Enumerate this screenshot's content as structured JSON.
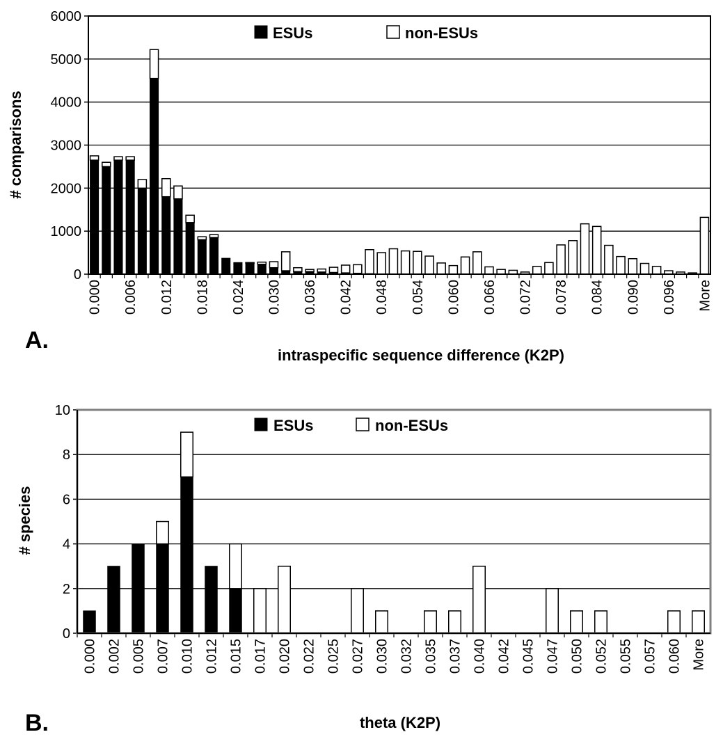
{
  "chart_data": [
    {
      "type": "bar",
      "stacked": true,
      "panel_label": "A.",
      "xlabel": "intraspecific sequence difference (K2P)",
      "ylabel": "# comparisons",
      "ylim": [
        0,
        6000
      ],
      "yticks": [
        0,
        1000,
        2000,
        3000,
        4000,
        5000,
        6000
      ],
      "grid": true,
      "legend_position": "top-center",
      "categories": [
        "0.000",
        "0.002",
        "0.004",
        "0.006",
        "0.008",
        "0.010",
        "0.012",
        "0.014",
        "0.016",
        "0.018",
        "0.020",
        "0.022",
        "0.024",
        "0.026",
        "0.028",
        "0.030",
        "0.032",
        "0.034",
        "0.036",
        "0.038",
        "0.040",
        "0.042",
        "0.044",
        "0.046",
        "0.048",
        "0.050",
        "0.052",
        "0.054",
        "0.056",
        "0.058",
        "0.060",
        "0.062",
        "0.064",
        "0.066",
        "0.068",
        "0.070",
        "0.072",
        "0.074",
        "0.076",
        "0.078",
        "0.080",
        "0.082",
        "0.084",
        "0.086",
        "0.088",
        "0.090",
        "0.092",
        "0.094",
        "0.096",
        "0.098",
        "0.100",
        "More"
      ],
      "tick_labels": [
        "0.000",
        "0.006",
        "0.012",
        "0.018",
        "0.024",
        "0.030",
        "0.036",
        "0.042",
        "0.048",
        "0.054",
        "0.060",
        "0.066",
        "0.072",
        "0.078",
        "0.084",
        "0.090",
        "0.096",
        "More"
      ],
      "series": [
        {
          "name": "ESUs",
          "color": "#000000",
          "values": [
            2650,
            2500,
            2650,
            2650,
            2000,
            4550,
            1800,
            1750,
            1200,
            800,
            850,
            370,
            270,
            250,
            230,
            150,
            80,
            60,
            60,
            50,
            40,
            30,
            20,
            10,
            0,
            0,
            0,
            0,
            0,
            0,
            0,
            0,
            0,
            0,
            0,
            0,
            0,
            0,
            0,
            0,
            0,
            0,
            0,
            0,
            0,
            0,
            0,
            0,
            0,
            0,
            0,
            0
          ]
        },
        {
          "name": "non-ESUs",
          "color": "#ffffff",
          "values": [
            100,
            100,
            80,
            80,
            200,
            670,
            420,
            300,
            170,
            70,
            70,
            0,
            0,
            20,
            50,
            140,
            440,
            90,
            50,
            70,
            120,
            180,
            200,
            560,
            500,
            590,
            540,
            530,
            420,
            260,
            200,
            400,
            520,
            170,
            110,
            90,
            50,
            180,
            270,
            680,
            780,
            1170,
            1110,
            670,
            410,
            360,
            250,
            180,
            80,
            50,
            30,
            1320
          ]
        }
      ]
    },
    {
      "type": "bar",
      "stacked": true,
      "panel_label": "B.",
      "xlabel": "theta  (K2P)",
      "ylabel": "# species",
      "ylim": [
        0,
        10
      ],
      "yticks": [
        0,
        2,
        4,
        6,
        8,
        10
      ],
      "grid": true,
      "legend_position": "top-center",
      "categories": [
        "0.000",
        "0.002",
        "0.005",
        "0.007",
        "0.010",
        "0.012",
        "0.015",
        "0.017",
        "0.020",
        "0.022",
        "0.025",
        "0.027",
        "0.030",
        "0.032",
        "0.035",
        "0.037",
        "0.040",
        "0.042",
        "0.045",
        "0.047",
        "0.050",
        "0.052",
        "0.055",
        "0.057",
        "0.060",
        "More"
      ],
      "series": [
        {
          "name": "ESUs",
          "color": "#000000",
          "values": [
            1,
            3,
            4,
            4,
            7,
            3,
            2,
            0,
            0,
            0,
            0,
            0,
            0,
            0,
            0,
            0,
            0,
            0,
            0,
            0,
            0,
            0,
            0,
            0,
            0,
            0
          ]
        },
        {
          "name": "non-ESUs",
          "color": "#ffffff",
          "values": [
            0,
            0,
            0,
            1,
            2,
            0,
            2,
            2,
            3,
            0,
            0,
            2,
            1,
            0,
            1,
            1,
            3,
            0,
            0,
            2,
            1,
            1,
            0,
            0,
            1,
            1
          ]
        }
      ]
    }
  ]
}
